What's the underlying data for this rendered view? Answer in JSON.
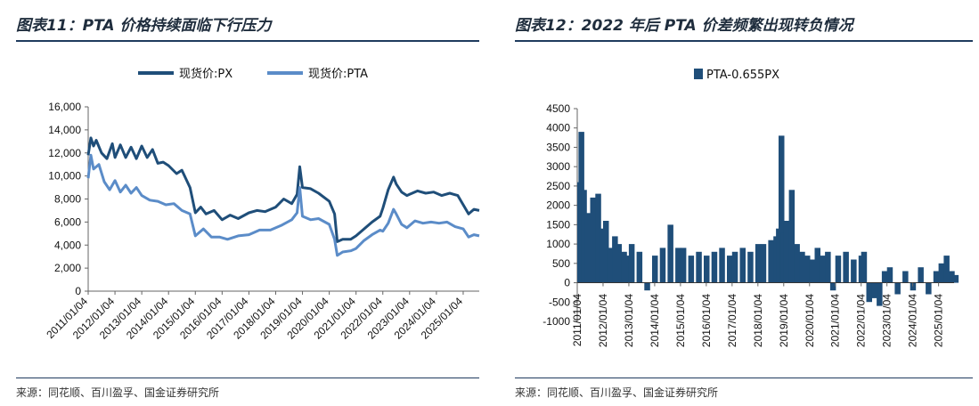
{
  "left_title": "图表11：PTA 价格持续面临下行压力",
  "right_title": "图表12：2022 年后 PTA 价差频繁出现转负情况",
  "left_source": "来源：同花顺、百川盈孚、国金证券研究所",
  "right_source": "来源：同花顺、百川盈孚、国金证券研究所",
  "colors": {
    "px": "#1f4e79",
    "pta": "#5b8cc8",
    "spread": "#1f4e79",
    "rule": "#1f3b5e"
  },
  "chart_data": [
    {
      "type": "line",
      "title": "",
      "legend": [
        "现货价:PX",
        "现货价:PTA"
      ],
      "ylim": [
        0,
        16000
      ],
      "yticks": [
        "0",
        "2,000",
        "4,000",
        "6,000",
        "8,000",
        "10,000",
        "12,000",
        "14,000",
        "16,000"
      ],
      "xticks": [
        "2011/01/04",
        "2012/01/04",
        "2013/01/04",
        "2014/01/04",
        "2015/01/04",
        "2016/01/04",
        "2017/01/04",
        "2018/01/04",
        "2019/01/04",
        "2020/01/04",
        "2021/01/04",
        "2022/01/04",
        "2023/01/04",
        "2024/01/04",
        "2025/01/04"
      ],
      "xlim": [
        2011.0,
        2025.6
      ],
      "series": [
        {
          "name": "现货价:PX",
          "x": [
            2011.0,
            2011.1,
            2011.2,
            2011.3,
            2011.5,
            2011.7,
            2011.9,
            2012.0,
            2012.2,
            2012.4,
            2012.6,
            2012.8,
            2013.0,
            2013.2,
            2013.4,
            2013.6,
            2013.8,
            2014.0,
            2014.3,
            2014.5,
            2014.8,
            2015.0,
            2015.2,
            2015.4,
            2015.7,
            2016.0,
            2016.3,
            2016.6,
            2017.0,
            2017.3,
            2017.6,
            2018.0,
            2018.3,
            2018.6,
            2018.8,
            2018.9,
            2019.0,
            2019.3,
            2019.6,
            2020.0,
            2020.2,
            2020.3,
            2020.5,
            2020.8,
            2021.0,
            2021.3,
            2021.6,
            2021.9,
            2022.0,
            2022.2,
            2022.4,
            2022.5,
            2022.7,
            2022.9,
            2023.0,
            2023.3,
            2023.6,
            2023.9,
            2024.2,
            2024.5,
            2024.8,
            2025.0,
            2025.2,
            2025.4,
            2025.6
          ],
          "values": [
            11800,
            13300,
            12600,
            13100,
            12000,
            11500,
            12800,
            11600,
            12700,
            11600,
            12500,
            11500,
            12600,
            11600,
            12300,
            11100,
            11200,
            10900,
            10200,
            10500,
            9000,
            6800,
            7300,
            6700,
            7000,
            6200,
            6600,
            6300,
            6800,
            7000,
            6900,
            7300,
            8000,
            7600,
            8400,
            10800,
            9000,
            8900,
            8500,
            7800,
            6700,
            4300,
            4500,
            4500,
            4800,
            5400,
            6000,
            6500,
            7200,
            8800,
            9900,
            9300,
            8600,
            8300,
            8400,
            8700,
            8500,
            8600,
            8300,
            8500,
            8300,
            7500,
            6700,
            7100,
            7000
          ]
        },
        {
          "name": "现货价:PTA",
          "x": [
            2011.0,
            2011.1,
            2011.2,
            2011.4,
            2011.6,
            2011.8,
            2012.0,
            2012.2,
            2012.4,
            2012.6,
            2012.8,
            2013.0,
            2013.3,
            2013.6,
            2013.9,
            2014.2,
            2014.5,
            2014.8,
            2015.0,
            2015.3,
            2015.6,
            2015.9,
            2016.2,
            2016.6,
            2017.0,
            2017.4,
            2017.8,
            2018.2,
            2018.6,
            2018.8,
            2018.9,
            2019.0,
            2019.3,
            2019.6,
            2020.0,
            2020.2,
            2020.3,
            2020.5,
            2020.8,
            2021.0,
            2021.3,
            2021.6,
            2021.9,
            2022.0,
            2022.2,
            2022.4,
            2022.5,
            2022.7,
            2022.9,
            2023.2,
            2023.5,
            2023.8,
            2024.1,
            2024.4,
            2024.7,
            2025.0,
            2025.2,
            2025.4,
            2025.6
          ],
          "values": [
            9800,
            11800,
            10600,
            11000,
            9500,
            8800,
            9600,
            8600,
            9200,
            8500,
            9000,
            8300,
            7900,
            7800,
            7500,
            7600,
            7000,
            6700,
            4800,
            5400,
            4700,
            4700,
            4500,
            4800,
            4900,
            5300,
            5300,
            5700,
            6200,
            6800,
            9000,
            6500,
            6200,
            6300,
            5800,
            4500,
            3100,
            3400,
            3500,
            3700,
            4400,
            4900,
            5300,
            5200,
            5900,
            7100,
            6700,
            5800,
            5500,
            6100,
            5900,
            6000,
            5900,
            6000,
            5600,
            5400,
            4700,
            4900,
            4800
          ]
        }
      ]
    },
    {
      "type": "bar",
      "title": "",
      "legend": [
        "PTA-0.655PX"
      ],
      "ylim": [
        -1000,
        4500
      ],
      "yticks": [
        "-1000",
        "-500",
        "0",
        "500",
        "1000",
        "1500",
        "2000",
        "2500",
        "3000",
        "3500",
        "4000",
        "4500"
      ],
      "xticks": [
        "2011/01/04",
        "2012/01/04",
        "2013/01/04",
        "2014/01/04",
        "2015/01/04",
        "2016/01/04",
        "2017/01/04",
        "2018/01/04",
        "2019/01/04",
        "2020/01/04",
        "2021/01/04",
        "2022/01/04",
        "2023/01/04",
        "2024/01/04",
        "2025/01/04"
      ],
      "xlim": [
        2011.0,
        2025.6
      ],
      "series": [
        {
          "name": "PTA-0.655PX",
          "x": [
            2011.0,
            2011.05,
            2011.15,
            2011.3,
            2011.5,
            2011.7,
            2011.85,
            2012.0,
            2012.2,
            2012.35,
            2012.5,
            2012.7,
            2012.9,
            2013.0,
            2013.3,
            2013.6,
            2013.9,
            2014.2,
            2014.5,
            2014.8,
            2015.0,
            2015.3,
            2015.6,
            2015.9,
            2016.2,
            2016.5,
            2016.8,
            2017.0,
            2017.3,
            2017.6,
            2017.9,
            2018.1,
            2018.4,
            2018.6,
            2018.7,
            2018.8,
            2018.85,
            2018.9,
            2019.0,
            2019.2,
            2019.4,
            2019.6,
            2019.8,
            2020.0,
            2020.2,
            2020.4,
            2020.6,
            2020.8,
            2021.0,
            2021.3,
            2021.6,
            2021.9,
            2022.0,
            2022.2,
            2022.4,
            2022.6,
            2022.8,
            2023.0,
            2023.3,
            2023.6,
            2023.9,
            2024.2,
            2024.5,
            2024.8,
            2025.0,
            2025.2,
            2025.4,
            2025.55
          ],
          "values": [
            2600,
            3900,
            2400,
            1800,
            2200,
            2300,
            1400,
            1600,
            900,
            1200,
            1000,
            800,
            700,
            1000,
            800,
            -200,
            700,
            900,
            1500,
            900,
            900,
            700,
            800,
            700,
            800,
            900,
            700,
            800,
            900,
            800,
            1000,
            1000,
            1100,
            1200,
            1400,
            3800,
            1100,
            1300,
            1600,
            2400,
            1000,
            800,
            700,
            600,
            900,
            700,
            800,
            -200,
            700,
            800,
            600,
            700,
            800,
            -500,
            -400,
            -600,
            300,
            400,
            -300,
            300,
            -200,
            400,
            -300,
            300,
            500,
            700,
            300,
            200
          ]
        }
      ]
    }
  ]
}
